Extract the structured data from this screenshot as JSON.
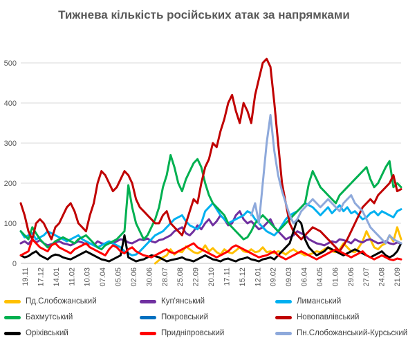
{
  "chart_data": {
    "type": "line",
    "title": "Тижнева кількість російських атак за напрямками",
    "xlabel": "",
    "ylabel": "",
    "ylim": [
      0,
      550
    ],
    "yticks": [
      0,
      100,
      200,
      300,
      400,
      500
    ],
    "grid": true,
    "legend_position": "bottom",
    "x_tick_labels": [
      "19.11",
      "17.12",
      "14.01",
      "11.02",
      "10.03",
      "07.04",
      "05.05",
      "02.06",
      "30.06",
      "28.07",
      "25.08",
      "22.09",
      "20.10",
      "17.11",
      "15.12",
      "12.01",
      "09.02",
      "09.03",
      "06.04",
      "04.05",
      "01.06",
      "29.06",
      "27.07",
      "24.08",
      "21.09"
    ],
    "x_count": 100,
    "series": [
      {
        "name": "Пд.Слобожанський",
        "color": "#FFC000",
        "values": [
          null,
          null,
          null,
          null,
          null,
          null,
          null,
          null,
          null,
          null,
          null,
          null,
          null,
          null,
          null,
          null,
          null,
          null,
          null,
          null,
          null,
          null,
          null,
          null,
          null,
          null,
          null,
          null,
          null,
          null,
          null,
          null,
          null,
          null,
          null,
          0,
          8,
          15,
          20,
          35,
          22,
          30,
          28,
          42,
          35,
          28,
          25,
          30,
          45,
          30,
          38,
          28,
          22,
          35,
          28,
          25,
          32,
          40,
          30,
          28,
          35,
          28,
          30,
          40,
          28,
          30,
          25,
          30,
          28,
          22,
          30,
          35,
          28,
          25,
          20,
          22,
          25,
          30,
          28,
          35,
          40,
          30,
          28,
          35,
          50,
          40,
          30,
          28,
          40,
          55,
          80,
          60,
          40,
          35,
          45,
          50,
          70,
          55,
          90,
          60
        ]
      },
      {
        "name": "Куп'янський",
        "color": "#7030A0",
        "values": [
          50,
          55,
          48,
          60,
          52,
          58,
          50,
          45,
          48,
          52,
          55,
          50,
          48,
          45,
          50,
          55,
          52,
          48,
          50,
          45,
          55,
          50,
          48,
          52,
          50,
          55,
          60,
          58,
          52,
          50,
          55,
          60,
          58,
          62,
          55,
          52,
          58,
          60,
          65,
          70,
          80,
          85,
          90,
          75,
          70,
          80,
          95,
          85,
          100,
          110,
          95,
          105,
          120,
          110,
          95,
          100,
          120,
          130,
          110,
          100,
          105,
          95,
          85,
          90,
          100,
          110,
          90,
          80,
          70,
          60,
          65,
          70,
          80,
          75,
          70,
          60,
          55,
          50,
          48,
          45,
          50,
          55,
          52,
          60,
          58,
          55,
          50,
          60,
          55,
          52,
          58,
          60,
          55,
          50,
          52,
          55,
          50,
          48,
          52,
          50
        ]
      },
      {
        "name": "Лиманський",
        "color": "#00B0F0",
        "values": [
          80,
          65,
          70,
          75,
          60,
          65,
          70,
          80,
          75,
          70,
          65,
          60,
          55,
          60,
          65,
          70,
          60,
          55,
          50,
          45,
          40,
          45,
          50,
          55,
          50,
          45,
          40,
          30,
          25,
          20,
          22,
          30,
          40,
          50,
          60,
          70,
          75,
          80,
          90,
          100,
          110,
          115,
          120,
          105,
          95,
          90,
          85,
          100,
          130,
          140,
          150,
          135,
          120,
          110,
          100,
          105,
          110,
          115,
          120,
          130,
          125,
          110,
          100,
          90,
          80,
          75,
          70,
          80,
          95,
          110,
          120,
          125,
          130,
          140,
          150,
          145,
          140,
          130,
          120,
          130,
          140,
          125,
          135,
          145,
          130,
          140,
          125,
          130,
          120,
          110,
          115,
          125,
          130,
          120,
          130,
          125,
          120,
          115,
          130,
          135
        ]
      },
      {
        "name": "Бахмутський",
        "color": "#00B050",
        "values": [
          80,
          70,
          60,
          90,
          75,
          60,
          50,
          40,
          45,
          55,
          60,
          65,
          60,
          55,
          50,
          60,
          65,
          70,
          60,
          50,
          40,
          35,
          45,
          50,
          55,
          60,
          70,
          80,
          195,
          140,
          100,
          80,
          60,
          70,
          90,
          110,
          140,
          190,
          220,
          270,
          240,
          200,
          180,
          210,
          230,
          250,
          260,
          240,
          200,
          170,
          150,
          140,
          130,
          120,
          100,
          90,
          80,
          70,
          60,
          65,
          80,
          100,
          110,
          120,
          110,
          100,
          90,
          80,
          90,
          100,
          110,
          120,
          130,
          140,
          150,
          200,
          230,
          210,
          190,
          180,
          170,
          160,
          150,
          170,
          180,
          190,
          200,
          210,
          220,
          230,
          240,
          210,
          190,
          200,
          220,
          240,
          255,
          190,
          200,
          190
        ]
      },
      {
        "name": "Покровський",
        "color": "#0070C0",
        "values": [
          null,
          null,
          null,
          null,
          null,
          null,
          null,
          null,
          null,
          null,
          null,
          null,
          null,
          null,
          null,
          null,
          null,
          null,
          null,
          null,
          null,
          null,
          null,
          null,
          null,
          null,
          null,
          null,
          null,
          null,
          null,
          null,
          null,
          null,
          null,
          null,
          null,
          null,
          null,
          null,
          null,
          null,
          null,
          null,
          null,
          null,
          null,
          null,
          null,
          null,
          null,
          null,
          null,
          null,
          null,
          null,
          null,
          null,
          null,
          null,
          null,
          null,
          null,
          null,
          null,
          null,
          null,
          null,
          null,
          null,
          null,
          null,
          null,
          null,
          null,
          null,
          null,
          null,
          null,
          null,
          null,
          null,
          null,
          null,
          null,
          null,
          null,
          null,
          null,
          null,
          null,
          null,
          null,
          null,
          null,
          null,
          null,
          null,
          null,
          null
        ]
      },
      {
        "name": "Новопавлівський",
        "color": "#C00000",
        "values": [
          150,
          120,
          80,
          60,
          100,
          110,
          100,
          80,
          60,
          90,
          100,
          120,
          140,
          150,
          130,
          100,
          90,
          80,
          120,
          150,
          200,
          230,
          220,
          200,
          180,
          190,
          210,
          230,
          220,
          200,
          160,
          140,
          130,
          120,
          110,
          100,
          100,
          120,
          130,
          100,
          90,
          80,
          70,
          100,
          130,
          160,
          150,
          200,
          240,
          260,
          300,
          290,
          330,
          360,
          400,
          420,
          380,
          350,
          400,
          380,
          350,
          420,
          460,
          500,
          510,
          490,
          400,
          300,
          200,
          150,
          100,
          80,
          70,
          60,
          70,
          80,
          90,
          85,
          80,
          70,
          60,
          50,
          40,
          30,
          45,
          60,
          80,
          100,
          120,
          140,
          150,
          160,
          150,
          170,
          180,
          190,
          200,
          220,
          180,
          185
        ]
      },
      {
        "name": "Оріхівський",
        "color": "#000000",
        "values": [
          20,
          15,
          18,
          25,
          30,
          20,
          15,
          10,
          18,
          22,
          20,
          15,
          12,
          10,
          15,
          20,
          25,
          30,
          25,
          20,
          15,
          10,
          8,
          5,
          10,
          15,
          20,
          70,
          15,
          10,
          5,
          8,
          10,
          15,
          20,
          18,
          15,
          10,
          5,
          8,
          10,
          12,
          15,
          10,
          8,
          5,
          10,
          15,
          20,
          15,
          10,
          8,
          5,
          10,
          12,
          8,
          5,
          10,
          12,
          15,
          10,
          8,
          5,
          10,
          12,
          15,
          10,
          20,
          30,
          40,
          50,
          80,
          110,
          100,
          60,
          40,
          30,
          20,
          25,
          30,
          40,
          35,
          30,
          25,
          20,
          25,
          30,
          35,
          30,
          25,
          20,
          15,
          20,
          25,
          30,
          20,
          15,
          20,
          30,
          50
        ]
      },
      {
        "name": "Придніпровський",
        "color": "#FF0000",
        "values": [
          20,
          25,
          30,
          60,
          50,
          40,
          35,
          30,
          45,
          50,
          40,
          35,
          30,
          25,
          35,
          40,
          45,
          50,
          40,
          35,
          30,
          25,
          20,
          35,
          45,
          40,
          30,
          25,
          35,
          40,
          30,
          25,
          20,
          18,
          15,
          20,
          25,
          30,
          35,
          28,
          25,
          30,
          35,
          40,
          45,
          50,
          40,
          35,
          30,
          25,
          20,
          15,
          20,
          25,
          30,
          40,
          45,
          40,
          35,
          30,
          25,
          20,
          15,
          18,
          20,
          25,
          30,
          20,
          15,
          10,
          15,
          20,
          25,
          30,
          25,
          20,
          15,
          10,
          15,
          20,
          25,
          30,
          35,
          30,
          25,
          20,
          15,
          20,
          25,
          30,
          20,
          15,
          10,
          15,
          20,
          15,
          10,
          8,
          12,
          10
        ]
      },
      {
        "name": "Пн.Слобожанський-Курсьский",
        "color": "#8EA9DB",
        "values": [
          null,
          null,
          null,
          null,
          null,
          null,
          null,
          null,
          null,
          null,
          null,
          null,
          null,
          null,
          null,
          null,
          null,
          null,
          null,
          null,
          null,
          null,
          null,
          null,
          null,
          null,
          null,
          null,
          null,
          null,
          null,
          null,
          null,
          null,
          null,
          null,
          null,
          null,
          null,
          null,
          null,
          null,
          null,
          null,
          null,
          null,
          null,
          null,
          null,
          null,
          null,
          null,
          null,
          null,
          null,
          null,
          null,
          null,
          null,
          null,
          120,
          150,
          100,
          200,
          300,
          370,
          280,
          220,
          180,
          150,
          120,
          100,
          110,
          130,
          140,
          150,
          160,
          150,
          140,
          150,
          160,
          150,
          140,
          130,
          150,
          160,
          170,
          150,
          140,
          130,
          110,
          90,
          80,
          70,
          60,
          50,
          70,
          60,
          55,
          50
        ]
      }
    ]
  }
}
